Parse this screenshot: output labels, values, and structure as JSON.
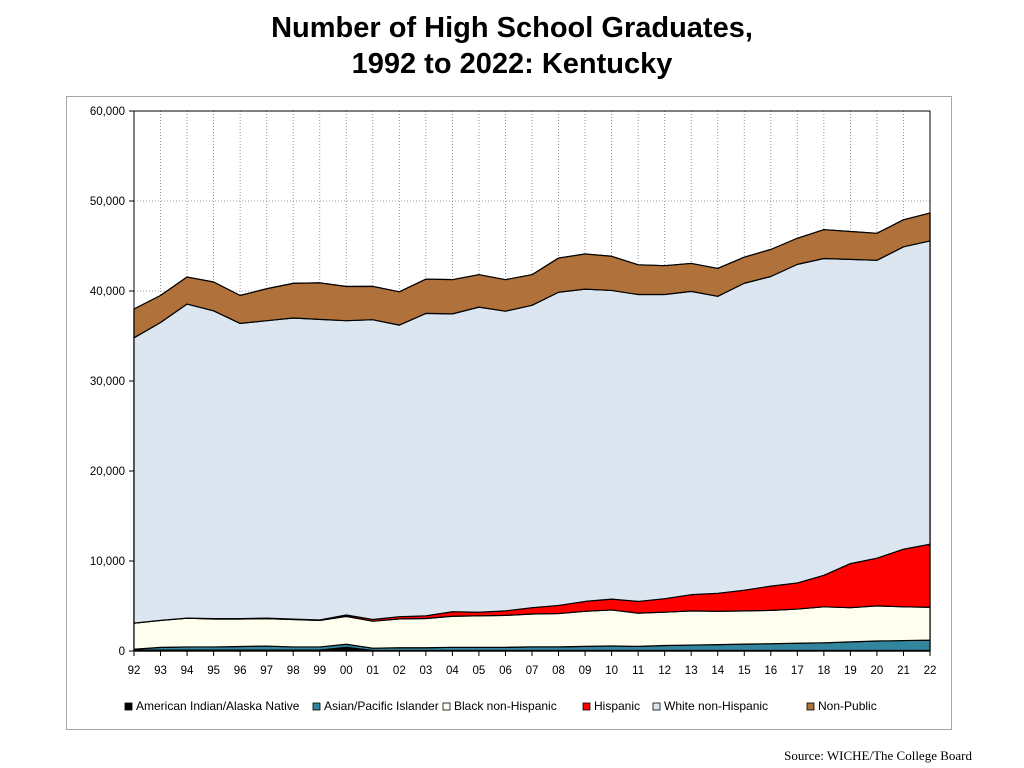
{
  "title": {
    "line1": "Number of High School Graduates,",
    "line2": "1992 to 2022:  Kentucky"
  },
  "source": "Source: WICHE/The College Board",
  "chart_data": {
    "type": "area",
    "stacked": true,
    "title": "Number of High School Graduates, 1992 to 2022:  Kentucky",
    "xlabel": "",
    "ylabel": "",
    "categories": [
      "92",
      "93",
      "94",
      "95",
      "96",
      "97",
      "98",
      "99",
      "00",
      "01",
      "02",
      "03",
      "04",
      "05",
      "06",
      "07",
      "08",
      "09",
      "10",
      "11",
      "12",
      "13",
      "14",
      "15",
      "16",
      "17",
      "18",
      "19",
      "20",
      "21",
      "22"
    ],
    "ylim": [
      0,
      60000
    ],
    "yticks": [
      0,
      10000,
      20000,
      30000,
      40000,
      50000,
      60000
    ],
    "ytick_labels": [
      "0",
      "10,000",
      "20,000",
      "30,000",
      "40,000",
      "50,000",
      "60,000"
    ],
    "grid": "dotted",
    "legend_position": "bottom",
    "series": [
      {
        "name": "American Indian/Alaska  Native",
        "color": "#000000",
        "values": [
          100,
          100,
          100,
          100,
          100,
          100,
          100,
          100,
          400,
          60,
          60,
          60,
          60,
          60,
          60,
          60,
          60,
          60,
          60,
          60,
          60,
          60,
          60,
          60,
          60,
          60,
          60,
          60,
          60,
          60,
          60
        ]
      },
      {
        "name": "Asian/Pacific Islander",
        "color": "#31859c",
        "values": [
          100,
          300,
          350,
          350,
          400,
          450,
          350,
          350,
          350,
          250,
          300,
          300,
          350,
          350,
          350,
          400,
          400,
          450,
          500,
          450,
          550,
          600,
          650,
          700,
          750,
          800,
          850,
          950,
          1050,
          1100,
          1150
        ]
      },
      {
        "name": "Black non-Hispanic",
        "color": "#fffff0",
        "values": [
          2900,
          3000,
          3200,
          3100,
          3050,
          3050,
          3050,
          2950,
          3100,
          3000,
          3200,
          3250,
          3450,
          3500,
          3550,
          3650,
          3700,
          3900,
          4000,
          3700,
          3700,
          3800,
          3700,
          3700,
          3700,
          3800,
          4000,
          3800,
          3900,
          3750,
          3650
        ]
      },
      {
        "name": "Hispanic",
        "color": "#ff0000",
        "values": [
          0,
          0,
          0,
          50,
          50,
          50,
          50,
          50,
          150,
          200,
          250,
          300,
          500,
          400,
          500,
          700,
          900,
          1100,
          1200,
          1300,
          1500,
          1800,
          2000,
          2300,
          2700,
          2900,
          3500,
          4900,
          5300,
          6400,
          7000
        ]
      },
      {
        "name": "White non-Hispanic",
        "color": "#dce6f1",
        "values": [
          31700,
          33100,
          34900,
          34200,
          32800,
          33050,
          33450,
          33400,
          32700,
          33300,
          32400,
          33600,
          33100,
          33900,
          33300,
          33600,
          34800,
          34700,
          34300,
          34100,
          33800,
          33700,
          33000,
          34100,
          34400,
          35400,
          35200,
          33800,
          33100,
          33600,
          33700
        ]
      },
      {
        "name": "Non-Public",
        "color": "#b0723a",
        "values": [
          3200,
          3000,
          3000,
          3200,
          3100,
          3550,
          3850,
          4050,
          3800,
          3700,
          3700,
          3800,
          3800,
          3600,
          3500,
          3400,
          3800,
          3900,
          3800,
          3300,
          3200,
          3100,
          3100,
          2900,
          3000,
          2900,
          3200,
          3100,
          3000,
          3000,
          3100
        ]
      }
    ]
  }
}
